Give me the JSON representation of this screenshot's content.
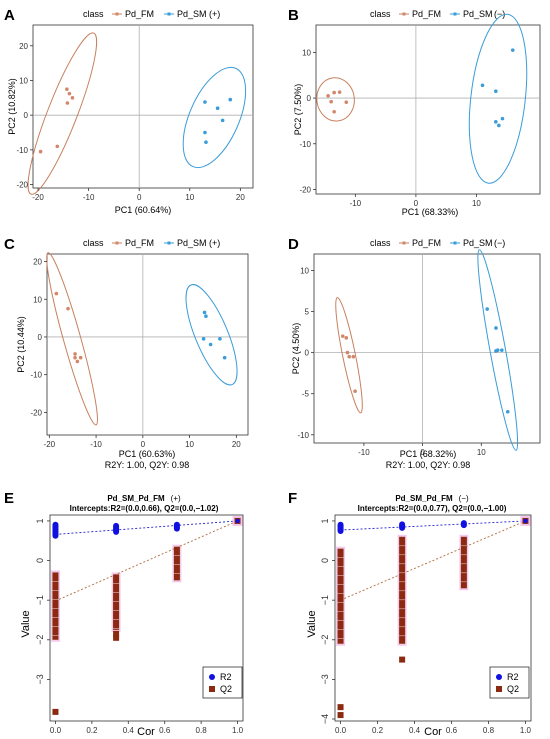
{
  "colors": {
    "fm": "#D2876A",
    "sm": "#3A9CD8",
    "r2": "#1010E0",
    "q2": "#8B2A10",
    "fm_line": "#C8805E",
    "r2_line": "#2222CC",
    "glow": "#F0B8E6"
  },
  "chart_data": [
    {
      "panel": "A",
      "type": "scatter",
      "legend_title": "class",
      "legend": [
        "Pd_FM",
        "Pd_SM",
        "(+)"
      ],
      "xlabel": "PC1 (60.64%)",
      "ylabel": "PC2 (10.82%)",
      "footnote": "",
      "xlim": [
        -21,
        22.5
      ],
      "ylim": [
        -21,
        26
      ],
      "xticks": [
        -20,
        -10,
        0,
        10,
        20
      ],
      "yticks": [
        -20,
        -10,
        0,
        10,
        20
      ],
      "series": [
        {
          "name": "Pd_FM",
          "points": [
            [
              -19.5,
              -10.5
            ],
            [
              -16.2,
              -9
            ],
            [
              -14.2,
              3.5
            ],
            [
              -13.8,
              6.2
            ],
            [
              -14.3,
              7.5
            ],
            [
              -13.2,
              5
            ]
          ]
        },
        {
          "name": "Pd_SM",
          "points": [
            [
              13,
              3.8
            ],
            [
              13,
              -5
            ],
            [
              13.2,
              -7.8
            ],
            [
              15.5,
              2
            ],
            [
              16.5,
              -1.5
            ],
            [
              18,
              4.5
            ]
          ]
        }
      ]
    },
    {
      "panel": "B",
      "type": "scatter",
      "legend_title": "class",
      "legend": [
        "Pd_FM",
        "Pd_SM",
        "(−)"
      ],
      "xlabel": "PC1 (68.33%)",
      "ylabel": "PC2 (7.50%)",
      "footnote": "",
      "xlim": [
        -16.5,
        20.5
      ],
      "ylim": [
        -21,
        16
      ],
      "xticks": [
        -10,
        0,
        10
      ],
      "yticks": [
        -20,
        -10,
        0,
        10
      ],
      "series": [
        {
          "name": "Pd_FM",
          "points": [
            [
              -14.5,
              0.5
            ],
            [
              -13.5,
              1.2
            ],
            [
              -12.6,
              1.3
            ],
            [
              -14,
              -0.8
            ],
            [
              -11.5,
              -0.9
            ],
            [
              -13.5,
              -3
            ]
          ]
        },
        {
          "name": "Pd_SM",
          "points": [
            [
              11,
              2.8
            ],
            [
              13.2,
              1.5
            ],
            [
              13.7,
              -6
            ],
            [
              14.3,
              -4.5
            ],
            [
              13.2,
              -5.2
            ],
            [
              16,
              10.5
            ]
          ]
        }
      ]
    },
    {
      "panel": "C",
      "type": "scatter",
      "legend_title": "class",
      "legend": [
        "Pd_FM",
        "Pd_SM",
        "(+)"
      ],
      "xlabel": "PC1 (60.63%)",
      "ylabel": "PC2 (10.44%)",
      "footnote": "R2Y: 1.00, Q2Y: 0.98",
      "xlim": [
        -20.5,
        22.5
      ],
      "ylim": [
        -26,
        22
      ],
      "xticks": [
        -20,
        -10,
        0,
        10,
        20
      ],
      "yticks": [
        -20,
        -10,
        0,
        10,
        20
      ],
      "series": [
        {
          "name": "Pd_FM",
          "points": [
            [
              -18.5,
              11.5
            ],
            [
              -16,
              7.5
            ],
            [
              -14.5,
              -4.5
            ],
            [
              -14,
              -6.5
            ],
            [
              -13.3,
              -5.5
            ],
            [
              -14.5,
              -5.5
            ]
          ]
        },
        {
          "name": "Pd_SM",
          "points": [
            [
              13.2,
              6.5
            ],
            [
              13.5,
              5.5
            ],
            [
              13,
              -0.5
            ],
            [
              14.5,
              -2
            ],
            [
              16.5,
              -0.5
            ],
            [
              17.5,
              -5.5
            ]
          ]
        }
      ]
    },
    {
      "panel": "D",
      "type": "scatter",
      "legend_title": "class",
      "legend": [
        "Pd_FM",
        "Pd_SM",
        "(−)"
      ],
      "xlabel": "PC1 (68.32%)",
      "ylabel": "PC2 (4.50%)",
      "footnote": "R2Y: 1.00, Q2Y: 0.98",
      "xlim": [
        -18.5,
        20
      ],
      "ylim": [
        -11,
        12
      ],
      "xticks": [
        -10,
        0,
        10
      ],
      "yticks": [
        -10,
        -5,
        0,
        5,
        10
      ],
      "series": [
        {
          "name": "Pd_FM",
          "points": [
            [
              -13.6,
              2
            ],
            [
              -13,
              1.8
            ],
            [
              -12.8,
              0
            ],
            [
              -12.5,
              -0.5
            ],
            [
              -11.8,
              -0.5
            ],
            [
              -11.5,
              -4.7
            ]
          ]
        },
        {
          "name": "Pd_SM",
          "points": [
            [
              11,
              5.3
            ],
            [
              12.5,
              3
            ],
            [
              12.8,
              0.3
            ],
            [
              13.5,
              0.3
            ],
            [
              12.5,
              0.2
            ],
            [
              14.5,
              -7.2
            ]
          ]
        }
      ]
    },
    {
      "panel": "E",
      "type": "scatter",
      "title": "Pd_SM_Pd_FM",
      "title_tag": "(+)",
      "subtitle": "Intercepts:R2=(0.0,0.66), Q2=(0.0,−1.02)",
      "xlabel": "Cor",
      "ylabel": "Value",
      "xlim": [
        -0.03,
        1.03
      ],
      "ylim": [
        -4.05,
        1.15
      ],
      "xticks": [
        0.0,
        0.2,
        0.4,
        0.6,
        0.8,
        1.0
      ],
      "xtick_labels": [
        "0.0",
        "0.2",
        "0.4",
        "0.6",
        "0.8",
        "1.0"
      ],
      "yticks": [
        1,
        0,
        -1,
        -2,
        -3
      ],
      "ytick_labels": [
        "1",
        "0",
        "−1",
        "−2",
        "−3"
      ],
      "legend": [
        "R2",
        "Q2"
      ],
      "r2_line": [
        [
          0,
          0.66
        ],
        [
          1,
          1.0
        ]
      ],
      "q2_line": [
        [
          0,
          -1.02
        ],
        [
          1,
          1.0
        ]
      ],
      "r2_columns": [
        {
          "x": 0.0,
          "range": [
            0.6,
            0.93
          ]
        },
        {
          "x": 0.333,
          "range": [
            0.7,
            0.9
          ]
        },
        {
          "x": 0.667,
          "range": [
            0.78,
            0.93
          ]
        }
      ],
      "q2_columns": [
        {
          "x": 0.0,
          "range": [
            -2.0,
            -0.3
          ]
        },
        {
          "x": 0.333,
          "range": [
            -1.75,
            -0.35
          ]
        },
        {
          "x": 0.667,
          "range": [
            -0.5,
            0.35
          ]
        }
      ],
      "q2_outliers": [
        [
          0.0,
          -3.82
        ],
        [
          0.333,
          -1.85
        ],
        [
          0.333,
          -1.95
        ]
      ],
      "final_point": {
        "x": 1.0,
        "r2": 1.0,
        "q2": 1.0
      }
    },
    {
      "panel": "F",
      "type": "scatter",
      "title": "Pd_SM_Pd_FM",
      "title_tag": "(−)",
      "subtitle": "Intercepts:R2=(0.0,0.77), Q2=(0.0,−1.00)",
      "xlabel": "Cor",
      "ylabel": "Value",
      "xlim": [
        -0.03,
        1.03
      ],
      "ylim": [
        -4.05,
        1.15
      ],
      "xticks": [
        0.0,
        0.2,
        0.4,
        0.6,
        0.8,
        1.0
      ],
      "xtick_labels": [
        "0.0",
        "0.2",
        "0.4",
        "0.6",
        "0.8",
        "1.0"
      ],
      "yticks": [
        1,
        0,
        -1,
        -2,
        -3,
        -4
      ],
      "ytick_labels": [
        "1",
        "0",
        "−1",
        "−2",
        "−3",
        "−4"
      ],
      "legend": [
        "R2",
        "Q2"
      ],
      "r2_line": [
        [
          0,
          0.77
        ],
        [
          1,
          1.0
        ]
      ],
      "q2_line": [
        [
          0,
          -1.0
        ],
        [
          1,
          1.0
        ]
      ],
      "r2_columns": [
        {
          "x": 0.0,
          "range": [
            0.72,
            0.93
          ]
        },
        {
          "x": 0.333,
          "range": [
            0.8,
            0.94
          ]
        },
        {
          "x": 0.667,
          "range": [
            0.87,
            0.97
          ]
        }
      ],
      "q2_columns": [
        {
          "x": 0.0,
          "range": [
            -2.1,
            0.3
          ]
        },
        {
          "x": 0.333,
          "range": [
            -2.1,
            0.6
          ]
        },
        {
          "x": 0.667,
          "range": [
            -0.7,
            0.6
          ]
        }
      ],
      "q2_outliers": [
        [
          0.0,
          -3.7
        ],
        [
          0.0,
          -3.9
        ],
        [
          0.333,
          -2.5
        ]
      ],
      "final_point": {
        "x": 1.0,
        "r2": 1.0,
        "q2": 1.0
      }
    }
  ]
}
